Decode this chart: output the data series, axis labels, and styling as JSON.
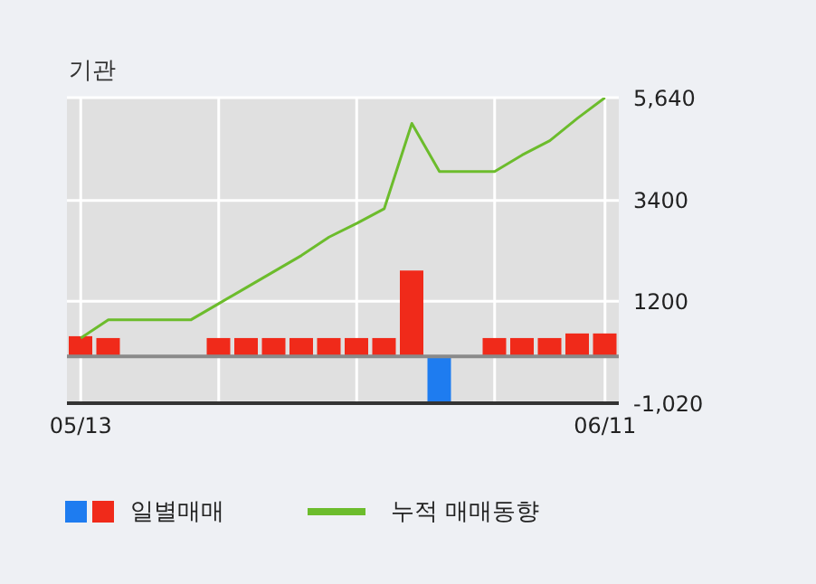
{
  "chart_data": {
    "type": "bar",
    "title": "기관",
    "categories": [
      "05/13",
      null,
      null,
      null,
      null,
      null,
      null,
      null,
      null,
      null,
      null,
      null,
      null,
      null,
      null,
      null,
      null,
      null,
      null,
      "06/11"
    ],
    "series": [
      {
        "name": "일별매매",
        "colors": [
          "#f02a1a",
          "#f02a1a",
          null,
          null,
          null,
          "#f02a1a",
          "#f02a1a",
          "#f02a1a",
          "#f02a1a",
          "#f02a1a",
          "#f02a1a",
          "#f02a1a",
          "#f02a1a",
          "#1e7cf0",
          null,
          "#f02a1a",
          "#f02a1a",
          "#f02a1a",
          "#f02a1a",
          "#f02a1a"
        ],
        "values": [
          440,
          400,
          0,
          0,
          0,
          400,
          400,
          400,
          400,
          400,
          400,
          400,
          1870,
          -1000,
          0,
          400,
          400,
          400,
          500,
          500
        ]
      },
      {
        "name": "누적 매매동향",
        "type": "line",
        "color": "#6cbc2c",
        "values": [
          400,
          800,
          800,
          800,
          800,
          1150,
          1500,
          1850,
          2200,
          2600,
          2900,
          3220,
          5080,
          4030,
          4030,
          4030,
          4390,
          4700,
          5190,
          5640
        ]
      }
    ],
    "ylim": [
      -1020,
      5640
    ],
    "yticks": [
      {
        "value": 5640,
        "label": "5,640"
      },
      3400,
      1200,
      {
        "value": -1020,
        "label": "-1,020"
      }
    ],
    "ref_lines": [
      {
        "axis": "y",
        "value": 0,
        "color": "#8a8a8a"
      }
    ],
    "grid": true,
    "legend": "bottom",
    "marker": "none"
  }
}
